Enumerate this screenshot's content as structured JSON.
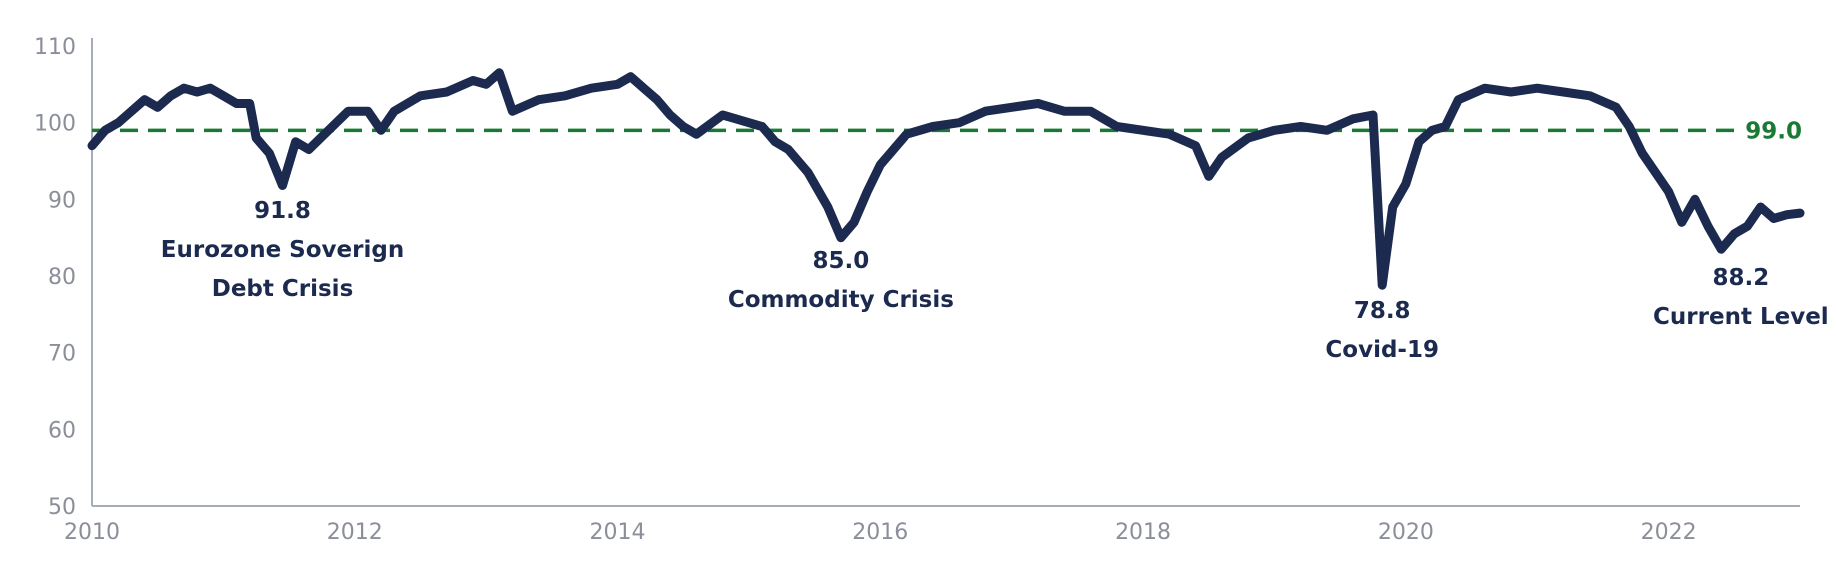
{
  "chart_data": {
    "type": "line",
    "title": "",
    "xlabel": "",
    "ylabel": "",
    "xlim": [
      2010,
      2023
    ],
    "ylim": [
      50,
      110
    ],
    "x_ticks": [
      "2010",
      "2012",
      "2014",
      "2016",
      "2018",
      "2020",
      "2022"
    ],
    "y_ticks": [
      "50",
      "60",
      "70",
      "80",
      "90",
      "100",
      "110"
    ],
    "grid": false,
    "legend": "none",
    "colors": {
      "series": "#1b2a4e",
      "reference": "#1a7a35",
      "axis": "#a7adb8",
      "tick_text": "#8a8f99"
    },
    "series": [
      {
        "x": [
          2010.0,
          2010.1,
          2010.2,
          2010.3,
          2010.4,
          2010.5,
          2010.6,
          2010.7,
          2010.8,
          2010.9,
          2011.0,
          2011.1,
          2011.2,
          2011.25,
          2011.35,
          2011.45,
          2011.55,
          2011.65,
          2011.8,
          2011.95,
          2012.1,
          2012.2,
          2012.3,
          2012.5,
          2012.7,
          2012.9,
          2013.0,
          2013.1,
          2013.2,
          2013.4,
          2013.6,
          2013.8,
          2014.0,
          2014.1,
          2014.2,
          2014.3,
          2014.4,
          2014.5,
          2014.6,
          2014.8,
          2014.9,
          2015.0,
          2015.1,
          2015.2,
          2015.3,
          2015.45,
          2015.6,
          2015.7,
          2015.8,
          2015.9,
          2016.0,
          2016.2,
          2016.4,
          2016.6,
          2016.8,
          2017.0,
          2017.2,
          2017.4,
          2017.6,
          2017.8,
          2018.0,
          2018.2,
          2018.4,
          2018.5,
          2018.6,
          2018.8,
          2019.0,
          2019.2,
          2019.4,
          2019.6,
          2019.75,
          2019.82,
          2019.9,
          2020.0,
          2020.1,
          2020.2,
          2020.3,
          2020.4,
          2020.6,
          2020.8,
          2021.0,
          2021.2,
          2021.4,
          2021.6,
          2021.7,
          2021.8,
          2021.9,
          2022.0,
          2022.1,
          2022.2,
          2022.3,
          2022.4,
          2022.5,
          2022.6,
          2022.7,
          2022.8,
          2022.9,
          2023.0
        ],
        "y": [
          97.0,
          99.0,
          100.0,
          101.5,
          103.0,
          102.0,
          103.5,
          104.5,
          104.0,
          104.5,
          103.5,
          102.5,
          102.5,
          98.0,
          96.0,
          91.8,
          97.5,
          96.5,
          99.0,
          101.5,
          101.5,
          99.0,
          101.5,
          103.5,
          104.0,
          105.5,
          105.0,
          106.5,
          101.5,
          103.0,
          103.5,
          104.5,
          105.0,
          106.0,
          104.5,
          103.0,
          101.0,
          99.5,
          98.5,
          101.0,
          100.5,
          100.0,
          99.5,
          97.5,
          96.5,
          93.5,
          89.0,
          85.0,
          87.0,
          91.0,
          94.5,
          98.5,
          99.5,
          100.0,
          101.5,
          102.0,
          102.5,
          101.5,
          101.5,
          99.5,
          99.0,
          98.5,
          97.0,
          93.0,
          95.5,
          98.0,
          99.0,
          99.5,
          99.0,
          100.5,
          101.0,
          78.8,
          89.0,
          92.0,
          97.5,
          99.0,
          99.5,
          103.0,
          104.5,
          104.0,
          104.5,
          104.0,
          103.5,
          102.0,
          99.5,
          96.0,
          93.5,
          91.0,
          87.0,
          90.0,
          86.5,
          83.5,
          85.5,
          86.5,
          89.0,
          87.5,
          88.0,
          88.2
        ]
      }
    ],
    "reference_line": {
      "y": 99.0,
      "label": "99.0"
    },
    "annotations": [
      {
        "x": 2011.45,
        "value_label": "91.8",
        "lines": [
          "Eurozone Soverign",
          "Debt Crisis"
        ]
      },
      {
        "x": 2015.7,
        "value_label": "85.0",
        "lines": [
          "Commodity Crisis"
        ]
      },
      {
        "x": 2019.82,
        "value_label": "78.8",
        "lines": [
          "Covid-19"
        ]
      },
      {
        "x": 2022.55,
        "value_label": "88.2",
        "lines": [
          "Current Level"
        ]
      }
    ]
  }
}
